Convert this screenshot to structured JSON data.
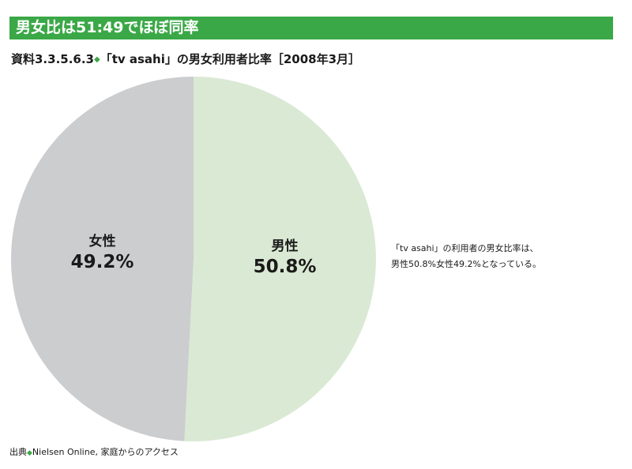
{
  "banner": {
    "title": "男女比は51:49でほぼ同率"
  },
  "figure": {
    "caption_prefix": "資料3.3.5.6.3",
    "caption_mark": "◆",
    "caption_text": "「tv asahi」の男女利用者比率［2008年3月］"
  },
  "chart_data": {
    "type": "pie",
    "slices": [
      {
        "label": "男性",
        "value": 50.8,
        "value_label": "50.8%",
        "color": "#dae9d4"
      },
      {
        "label": "女性",
        "value": 49.2,
        "value_label": "49.2%",
        "color": "#cccdcf"
      }
    ],
    "start": "12 o'clock",
    "direction": "clockwise"
  },
  "callout": {
    "line1": "「tv asahi」の利用者の男女比率は、",
    "line2": "男性50.8%女性49.2%となっている。"
  },
  "source": {
    "prefix": "出典",
    "mark": "◆",
    "text": "Nielsen Online, 家庭からのアクセス"
  }
}
